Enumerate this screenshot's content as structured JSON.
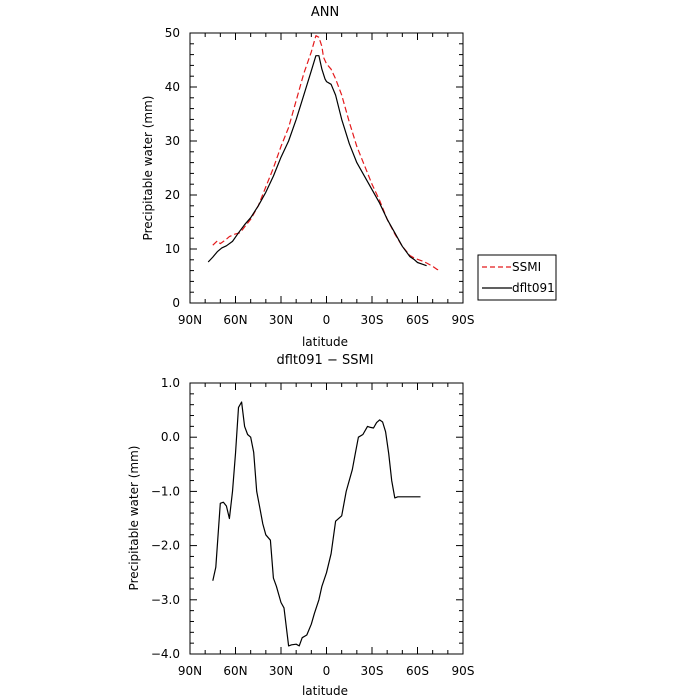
{
  "chart_data": [
    {
      "type": "line",
      "title": "ANN",
      "xlabel": "latitude",
      "ylabel": "Precipitable water (mm)",
      "xlim": [
        90,
        -90
      ],
      "ylim": [
        0,
        50
      ],
      "x_ticks": [
        90,
        60,
        30,
        0,
        -30,
        -60,
        -90
      ],
      "x_tick_labels": [
        "90N",
        "60N",
        "30N",
        "0",
        "30S",
        "60S",
        "90S"
      ],
      "y_ticks": [
        0,
        10,
        20,
        30,
        40,
        50
      ],
      "y_tick_labels": [
        "0",
        "10",
        "20",
        "30",
        "40",
        "50"
      ],
      "legend": {
        "position": "right",
        "entries": [
          "SSMI",
          "dflt091"
        ]
      },
      "series": [
        {
          "name": "SSMI",
          "color": "#e41a1c",
          "dash": "dashed",
          "x": [
            75,
            72,
            70,
            67,
            64,
            60,
            57,
            54,
            50,
            45,
            40,
            35,
            30,
            25,
            20,
            15,
            10,
            7,
            5,
            3,
            2,
            0,
            -3,
            -6,
            -10,
            -15,
            -20,
            -25,
            -30,
            -35,
            -40,
            -45,
            -50,
            -55,
            -58,
            -60,
            -63,
            -66,
            -70,
            -73,
            -75
          ],
          "y": [
            10.7,
            11.5,
            11.0,
            11.6,
            12.3,
            12.8,
            13.0,
            14.1,
            15.5,
            18.0,
            21.5,
            25.0,
            29.0,
            32.5,
            37.5,
            42.5,
            46.5,
            49.5,
            49.2,
            47.5,
            45.5,
            44.3,
            43.3,
            41.5,
            38.5,
            33.5,
            29.0,
            25.5,
            22.0,
            19.0,
            15.5,
            12.8,
            10.5,
            8.8,
            8.3,
            8.1,
            7.8,
            7.4,
            6.8,
            6.2,
            6.1
          ]
        },
        {
          "name": "dflt091",
          "color": "#000000",
          "dash": "solid",
          "x": [
            78,
            75,
            72,
            69,
            66,
            62,
            58,
            54,
            50,
            45,
            40,
            35,
            30,
            25,
            20,
            15,
            10,
            7,
            5,
            3,
            1,
            0,
            -3,
            -6,
            -10,
            -15,
            -20,
            -25,
            -30,
            -35,
            -40,
            -45,
            -50,
            -55,
            -58,
            -60,
            -63,
            -66
          ],
          "y": [
            7.6,
            8.5,
            9.5,
            10.2,
            10.6,
            11.4,
            13.0,
            14.5,
            15.8,
            18.0,
            20.5,
            23.5,
            27.0,
            30.0,
            34.0,
            38.5,
            43.0,
            45.8,
            45.8,
            43.3,
            41.5,
            41.0,
            40.5,
            38.5,
            34.0,
            29.5,
            26.0,
            23.5,
            21.0,
            18.5,
            15.5,
            13.0,
            10.5,
            8.6,
            8.0,
            7.5,
            7.2,
            6.9
          ]
        }
      ]
    },
    {
      "type": "line",
      "title": "dflt091 − SSMI",
      "xlabel": "latitude",
      "ylabel": "Precipitable water (mm)",
      "xlim": [
        90,
        -90
      ],
      "ylim": [
        -4.0,
        1.0
      ],
      "x_ticks": [
        90,
        60,
        30,
        0,
        -30,
        -60,
        -90
      ],
      "x_tick_labels": [
        "90N",
        "60N",
        "30N",
        "0",
        "30S",
        "60S",
        "90S"
      ],
      "y_ticks": [
        -4.0,
        -3.0,
        -2.0,
        -1.0,
        0.0,
        1.0
      ],
      "y_tick_labels": [
        "−4.0",
        "−3.0",
        "−2.0",
        "−1.0",
        "0.0",
        "1.0"
      ],
      "series": [
        {
          "name": "dflt091",
          "color": "#000000",
          "dash": "solid",
          "x": [
            75,
            73,
            70,
            68,
            66,
            64,
            62,
            60,
            58,
            56,
            54,
            52,
            50,
            48,
            46,
            44,
            42,
            40,
            37,
            35,
            33,
            30,
            28,
            25,
            23,
            20,
            18,
            16,
            13,
            10,
            8,
            5,
            3,
            0,
            -3,
            -6,
            -10,
            -13,
            -17,
            -19,
            -21,
            -24,
            -27,
            -29,
            -31,
            -33,
            -35,
            -37,
            -39,
            -41,
            -43,
            -45,
            -47,
            -49,
            -51,
            -53,
            -55,
            -57,
            -60,
            -62
          ],
          "y": [
            -2.65,
            -2.4,
            -1.22,
            -1.2,
            -1.27,
            -1.5,
            -1.0,
            -0.3,
            0.55,
            0.65,
            0.2,
            0.05,
            0.0,
            -0.28,
            -1.0,
            -1.3,
            -1.6,
            -1.8,
            -1.9,
            -2.6,
            -2.75,
            -3.05,
            -3.15,
            -3.85,
            -3.83,
            -3.82,
            -3.85,
            -3.7,
            -3.65,
            -3.45,
            -3.25,
            -3.0,
            -2.75,
            -2.5,
            -2.15,
            -1.55,
            -1.45,
            -1.0,
            -0.6,
            -0.3,
            0.0,
            0.05,
            0.2,
            0.18,
            0.17,
            0.27,
            0.32,
            0.28,
            0.1,
            -0.3,
            -0.8,
            -1.12,
            -1.1,
            -1.1,
            -1.1,
            -1.1,
            -1.1,
            -1.1,
            -1.1,
            -1.1
          ]
        }
      ]
    }
  ]
}
